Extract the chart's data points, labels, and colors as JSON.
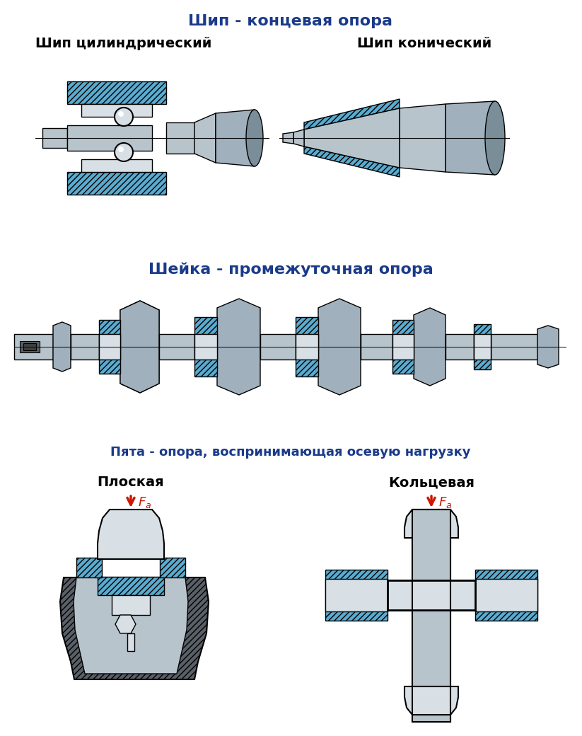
{
  "title1": "Шип - концевая опора",
  "label_cyl": "Шип цилиндрический",
  "label_con": "Шип конический",
  "title2": "Шейка - промежуточная опора",
  "title3": "Пята - опора, воспринимающая осевую нагрузку",
  "label_flat": "Плоская",
  "label_ring": "Кольцевая",
  "blue_color": "#5aabcf",
  "steel_color": "#b8c4cc",
  "steel_dark": "#7a8e9a",
  "steel_light": "#d8e0e6",
  "steel_mid": "#a0b0bc",
  "dark_gray": "#5a6068",
  "hatch_gray": "#686878",
  "title_color": "#1a3a8a",
  "red_color": "#cc1800",
  "bg_color": "#ffffff",
  "title_fontsize": 16,
  "label_fontsize": 14,
  "sub_fontsize": 13
}
